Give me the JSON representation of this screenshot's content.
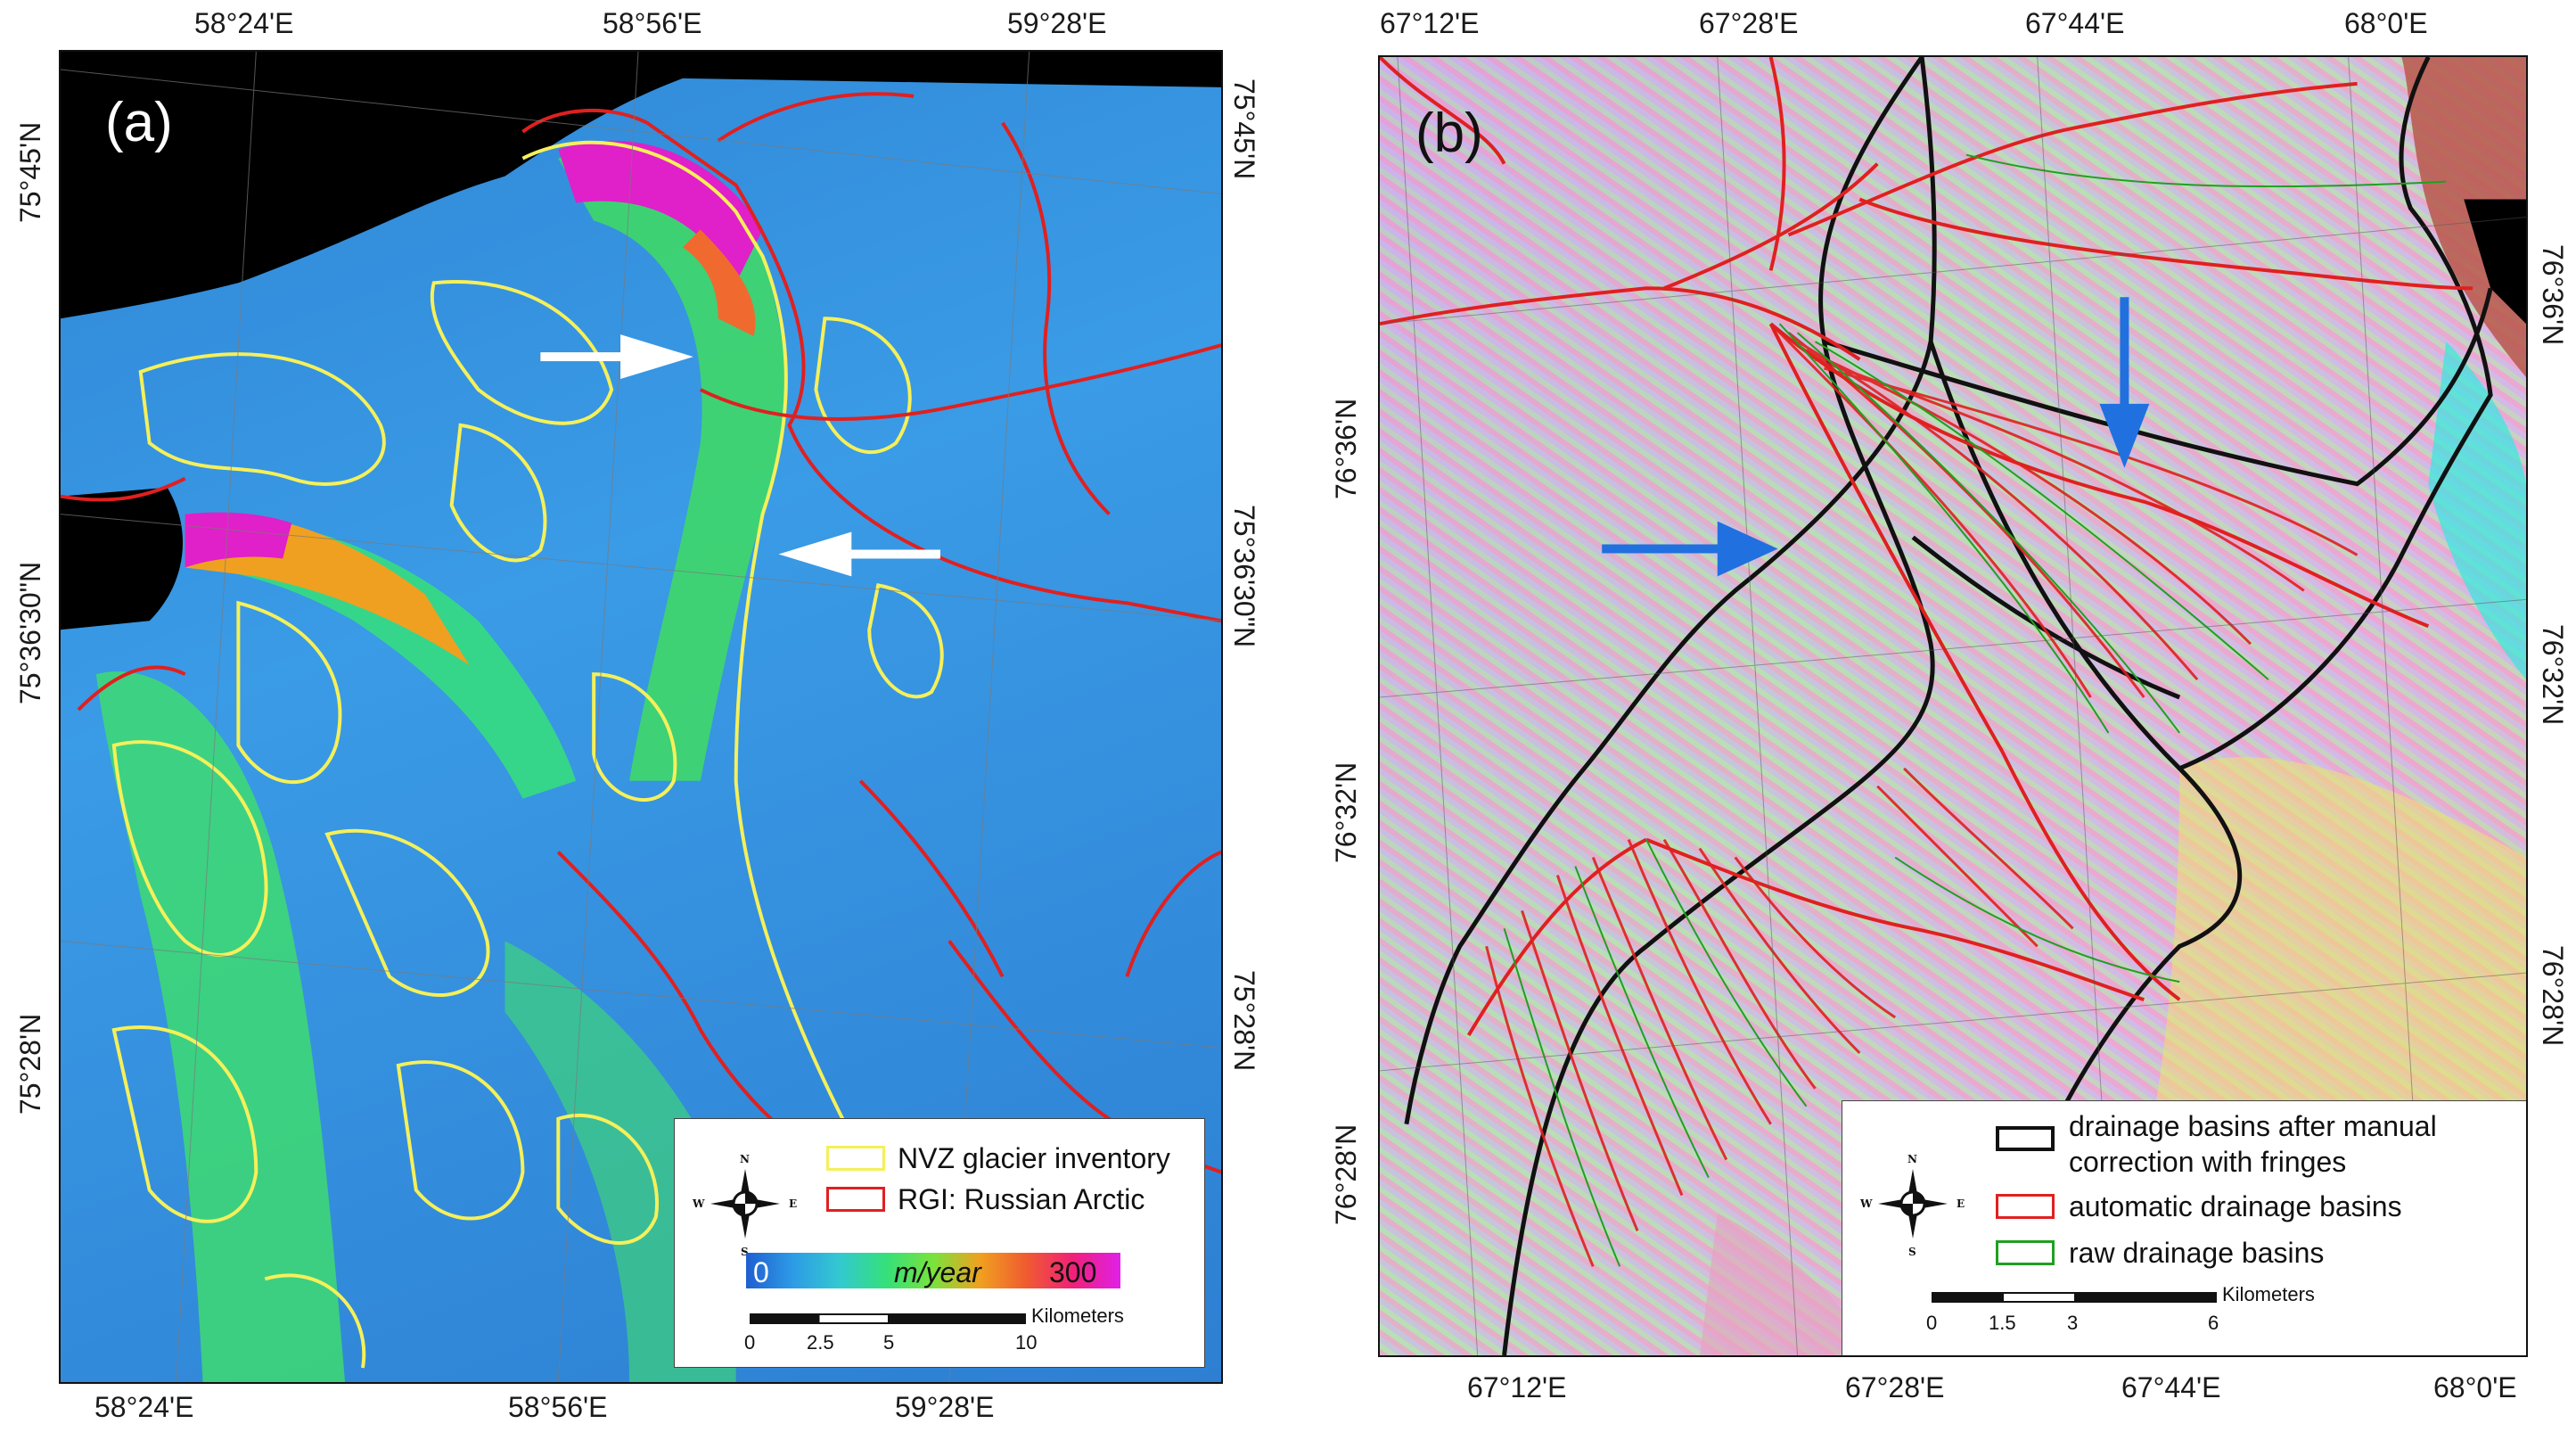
{
  "panel_a": {
    "label": "(a)",
    "top_ticks": [
      "58°24'E",
      "58°56'E",
      "59°28'E"
    ],
    "bottom_ticks": [
      "58°24'E",
      "58°56'E",
      "59°28'E"
    ],
    "left_ticks": [
      "75°45'N",
      "75°36'30\"N",
      "75°28'N"
    ],
    "right_ticks": [
      "75°45'N",
      "75°36'30\"N",
      "75°28'N"
    ],
    "legend": {
      "items": [
        {
          "label": "NVZ glacier inventory",
          "color": "#f5f05a"
        },
        {
          "label": "RGI: Russian Arctic",
          "color": "#e02020"
        }
      ],
      "colorbar": {
        "min_label": "0",
        "unit_label": "m/year",
        "max_label": "300",
        "colors": [
          "#1f5fd0",
          "#2d9be6",
          "#33c9d0",
          "#35e07a",
          "#7ae23c",
          "#f0a020",
          "#f05a30",
          "#f0207a",
          "#e020e8"
        ]
      },
      "scale": {
        "unit": "Kilometers",
        "ticks": [
          "0",
          "2.5",
          "5",
          "10"
        ]
      },
      "compass": {
        "n": "N",
        "s": "S",
        "e": "E",
        "w": "W"
      }
    }
  },
  "panel_b": {
    "label": "(b)",
    "top_ticks": [
      "67°12'E",
      "67°28'E",
      "67°44'E",
      "68°0'E"
    ],
    "bottom_ticks": [
      "67°12'E",
      "67°28'E",
      "67°44'E",
      "68°0'E"
    ],
    "left_ticks": [
      "76°36'N",
      "76°32'N",
      "76°28'N"
    ],
    "right_ticks": [
      "76°36'N",
      "76°32'N",
      "76°28'N"
    ],
    "legend": {
      "items": [
        {
          "label": "drainage basins after manual",
          "label2": "correction with fringes",
          "color": "#111111"
        },
        {
          "label": "automatic drainage basins",
          "color": "#e02020"
        },
        {
          "label": "raw drainage basins",
          "color": "#20a020"
        }
      ],
      "scale": {
        "unit": "Kilometers",
        "ticks": [
          "0",
          "1.5",
          "3",
          "6"
        ]
      },
      "compass": {
        "n": "N",
        "s": "S",
        "e": "E",
        "w": "W"
      }
    }
  }
}
